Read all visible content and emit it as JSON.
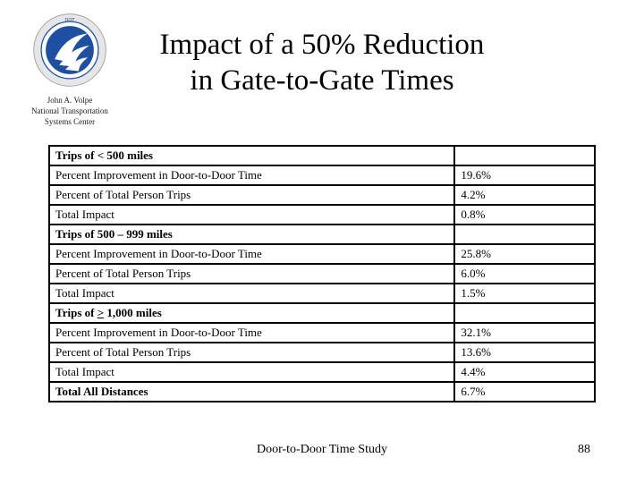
{
  "header": {
    "title_line1": "Impact of a 50% Reduction",
    "title_line2": "in Gate-to-Gate Times",
    "org_line1": "John A. Volpe",
    "org_line2": "National Transportation",
    "org_line3": "Systems Center"
  },
  "logo": {
    "icon": "us-department-of-transportation-seal",
    "text_top": "DEPARTMENT OF TRANSPORTATION",
    "text_bottom": "UNITED STATES OF AMERICA",
    "colors": {
      "blue": "#1f4fa0",
      "white": "#ffffff",
      "ring": "#d9d9d9"
    }
  },
  "table": {
    "sections": [
      {
        "title": "Trips of < 500 miles",
        "rows": [
          {
            "label": "Percent Improvement in Door-to-Door Time",
            "value": "19.6%"
          },
          {
            "label": "Percent of Total Person Trips",
            "value": "4.2%"
          },
          {
            "label": "Total Impact",
            "value": "0.8%"
          }
        ]
      },
      {
        "title": "Trips of  500 – 999 miles",
        "rows": [
          {
            "label": "Percent Improvement in Door-to-Door Time",
            "value": "25.8%"
          },
          {
            "label": "Percent of Total Person Trips",
            "value": "6.0%"
          },
          {
            "label": "Total Impact",
            "value": "1.5%"
          }
        ]
      },
      {
        "title_prefix": "Trips of ",
        "title_symbol": ">",
        "title_suffix": " 1,000 miles",
        "rows": [
          {
            "label": "Percent Improvement in Door-to-Door Time",
            "value": "32.1%"
          },
          {
            "label": "Percent of Total Person Trips",
            "value": "13.6%"
          },
          {
            "label": "Total Impact",
            "value": "4.4%"
          }
        ]
      }
    ],
    "grand_total": {
      "label": "Total All Distances",
      "value": "6.7%"
    }
  },
  "footer": {
    "text": "Door-to-Door Time Study",
    "page_number": "88"
  }
}
